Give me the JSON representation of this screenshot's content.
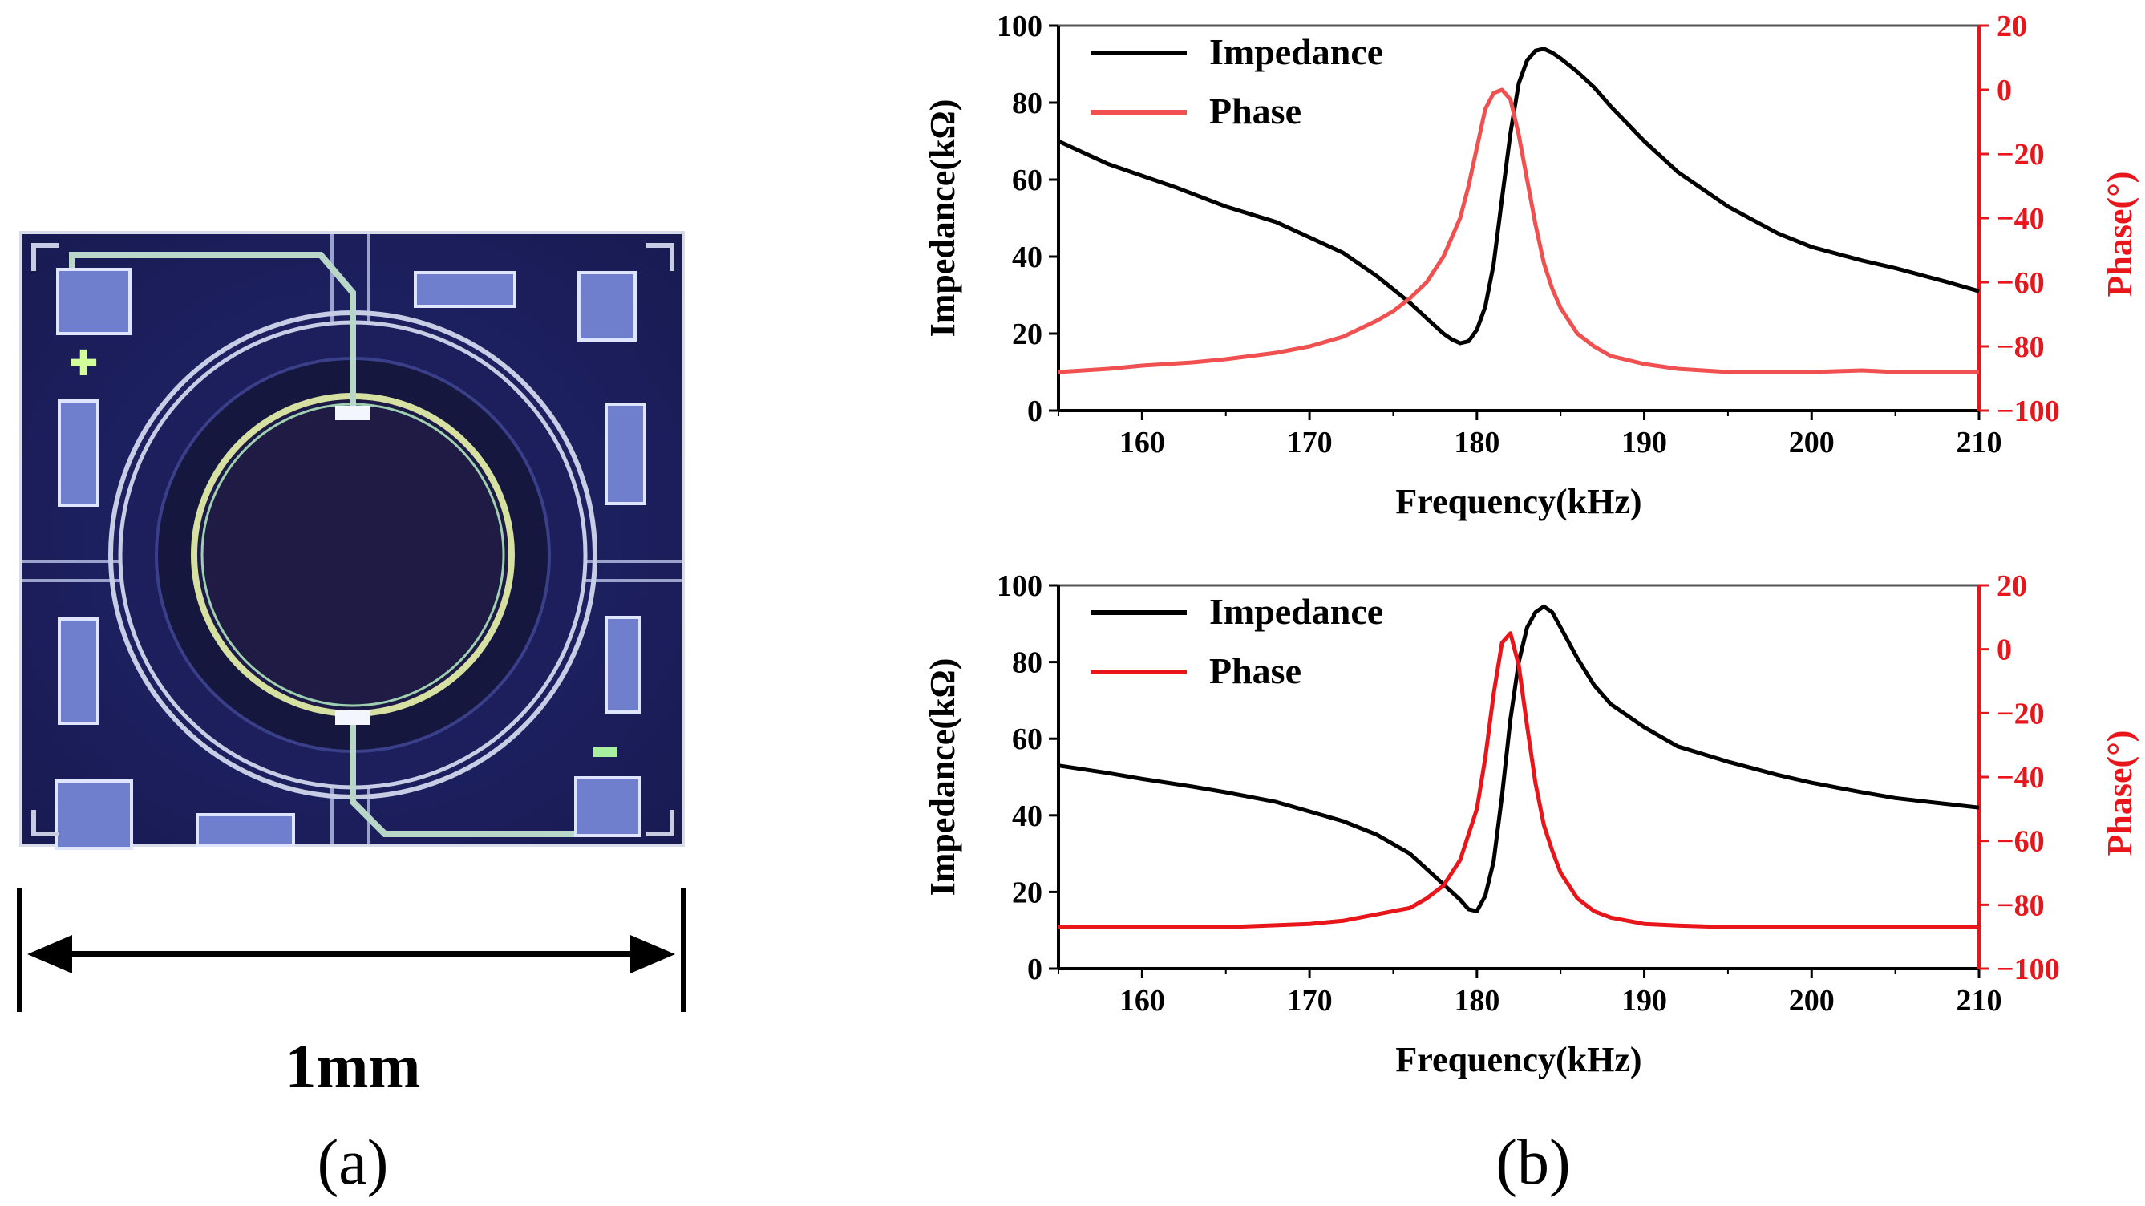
{
  "panel_a": {
    "scale_label": "1mm",
    "label": "(a)"
  },
  "panel_b": {
    "label": "(b)"
  },
  "colors": {
    "impedance": "#000000",
    "phase_top": "#f05050",
    "phase_bottom": "#e8161b",
    "right_axis": "#e8161b",
    "chip_bg": "#1a1d5e"
  },
  "chart_data": [
    {
      "type": "line",
      "xlabel": "Frequency(kHz)",
      "ylabel": "Impedance(kΩ)",
      "y2label": "Phase(°)",
      "xlim": [
        155,
        210
      ],
      "ylim": [
        0,
        100
      ],
      "y2lim": [
        -100,
        20
      ],
      "xticks": [
        160,
        170,
        180,
        190,
        200,
        210
      ],
      "yticks": [
        0,
        20,
        40,
        60,
        80,
        100
      ],
      "y2ticks": [
        -100,
        -80,
        -60,
        -40,
        -20,
        0,
        20
      ],
      "legend_position": "top-left",
      "series": [
        {
          "name": "Impedance",
          "axis": "left",
          "x": [
            155,
            158,
            160,
            162,
            165,
            168,
            170,
            172,
            174,
            176,
            177,
            178,
            178.5,
            179,
            179.5,
            180,
            180.5,
            181,
            181.5,
            182,
            182.5,
            183,
            183.5,
            184,
            184.5,
            185,
            186,
            187,
            188,
            190,
            192,
            195,
            198,
            200,
            203,
            205,
            208,
            210
          ],
          "y": [
            70,
            64,
            61,
            58,
            53,
            49,
            45,
            41,
            35,
            28,
            24,
            20,
            18.5,
            17.5,
            18,
            21,
            27,
            38,
            55,
            72,
            85,
            91,
            93.5,
            94,
            93,
            91.5,
            88,
            84,
            79,
            70,
            62,
            53,
            46,
            42.5,
            39,
            37,
            33.5,
            31
          ]
        },
        {
          "name": "Phase",
          "axis": "right",
          "x": [
            155,
            158,
            160,
            163,
            165,
            168,
            170,
            172,
            174,
            175,
            176,
            177,
            178,
            179,
            179.5,
            180,
            180.5,
            181,
            181.5,
            182,
            182.5,
            183,
            183.5,
            184,
            184.5,
            185,
            186,
            187,
            188,
            190,
            192,
            195,
            200,
            203,
            205,
            210
          ],
          "y": [
            -88,
            -87,
            -86,
            -85,
            -84,
            -82,
            -80,
            -77,
            -72,
            -69,
            -65,
            -60,
            -52,
            -40,
            -30,
            -18,
            -6,
            -1,
            0,
            -3,
            -14,
            -28,
            -42,
            -54,
            -62,
            -68,
            -76,
            -80,
            -83,
            -85.5,
            -87,
            -88,
            -88,
            -87.5,
            -88,
            -88
          ]
        }
      ]
    },
    {
      "type": "line",
      "xlabel": "Frequency(kHz)",
      "ylabel": "Impedance(kΩ)",
      "y2label": "Phase(°)",
      "xlim": [
        155,
        210
      ],
      "ylim": [
        0,
        100
      ],
      "y2lim": [
        -100,
        20
      ],
      "xticks": [
        160,
        170,
        180,
        190,
        200,
        210
      ],
      "yticks": [
        0,
        20,
        40,
        60,
        80,
        100
      ],
      "y2ticks": [
        -100,
        -80,
        -60,
        -40,
        -20,
        0,
        20
      ],
      "legend_position": "top-left",
      "series": [
        {
          "name": "Impedance",
          "axis": "left",
          "x": [
            155,
            158,
            160,
            163,
            165,
            168,
            170,
            172,
            174,
            176,
            178,
            179,
            179.5,
            180,
            180.5,
            181,
            181.5,
            182,
            182.5,
            183,
            183.5,
            184,
            184.5,
            185,
            186,
            187,
            188,
            190,
            192,
            195,
            198,
            200,
            203,
            205,
            208,
            210
          ],
          "y": [
            53,
            51,
            49.5,
            47.5,
            46,
            43.5,
            41,
            38.5,
            35,
            30,
            22,
            18,
            15.5,
            15,
            19,
            28,
            45,
            65,
            80,
            89,
            93,
            94.5,
            93,
            89,
            81,
            74,
            69,
            63,
            58,
            54,
            50.5,
            48.5,
            46,
            44.5,
            43,
            42
          ]
        },
        {
          "name": "Phase",
          "axis": "right",
          "x": [
            155,
            160,
            165,
            170,
            172,
            174,
            176,
            177,
            178,
            179,
            180,
            180.5,
            181,
            181.5,
            182,
            182.5,
            183,
            183.5,
            184,
            184.5,
            185,
            186,
            187,
            188,
            190,
            192,
            195,
            200,
            205,
            210
          ],
          "y": [
            -87,
            -87,
            -87,
            -86,
            -85,
            -83,
            -81,
            -78,
            -74,
            -66,
            -50,
            -34,
            -14,
            2,
            5,
            -5,
            -24,
            -42,
            -55,
            -63,
            -70,
            -78,
            -82,
            -84,
            -86,
            -86.5,
            -87,
            -87,
            -87,
            -87
          ]
        }
      ]
    }
  ]
}
